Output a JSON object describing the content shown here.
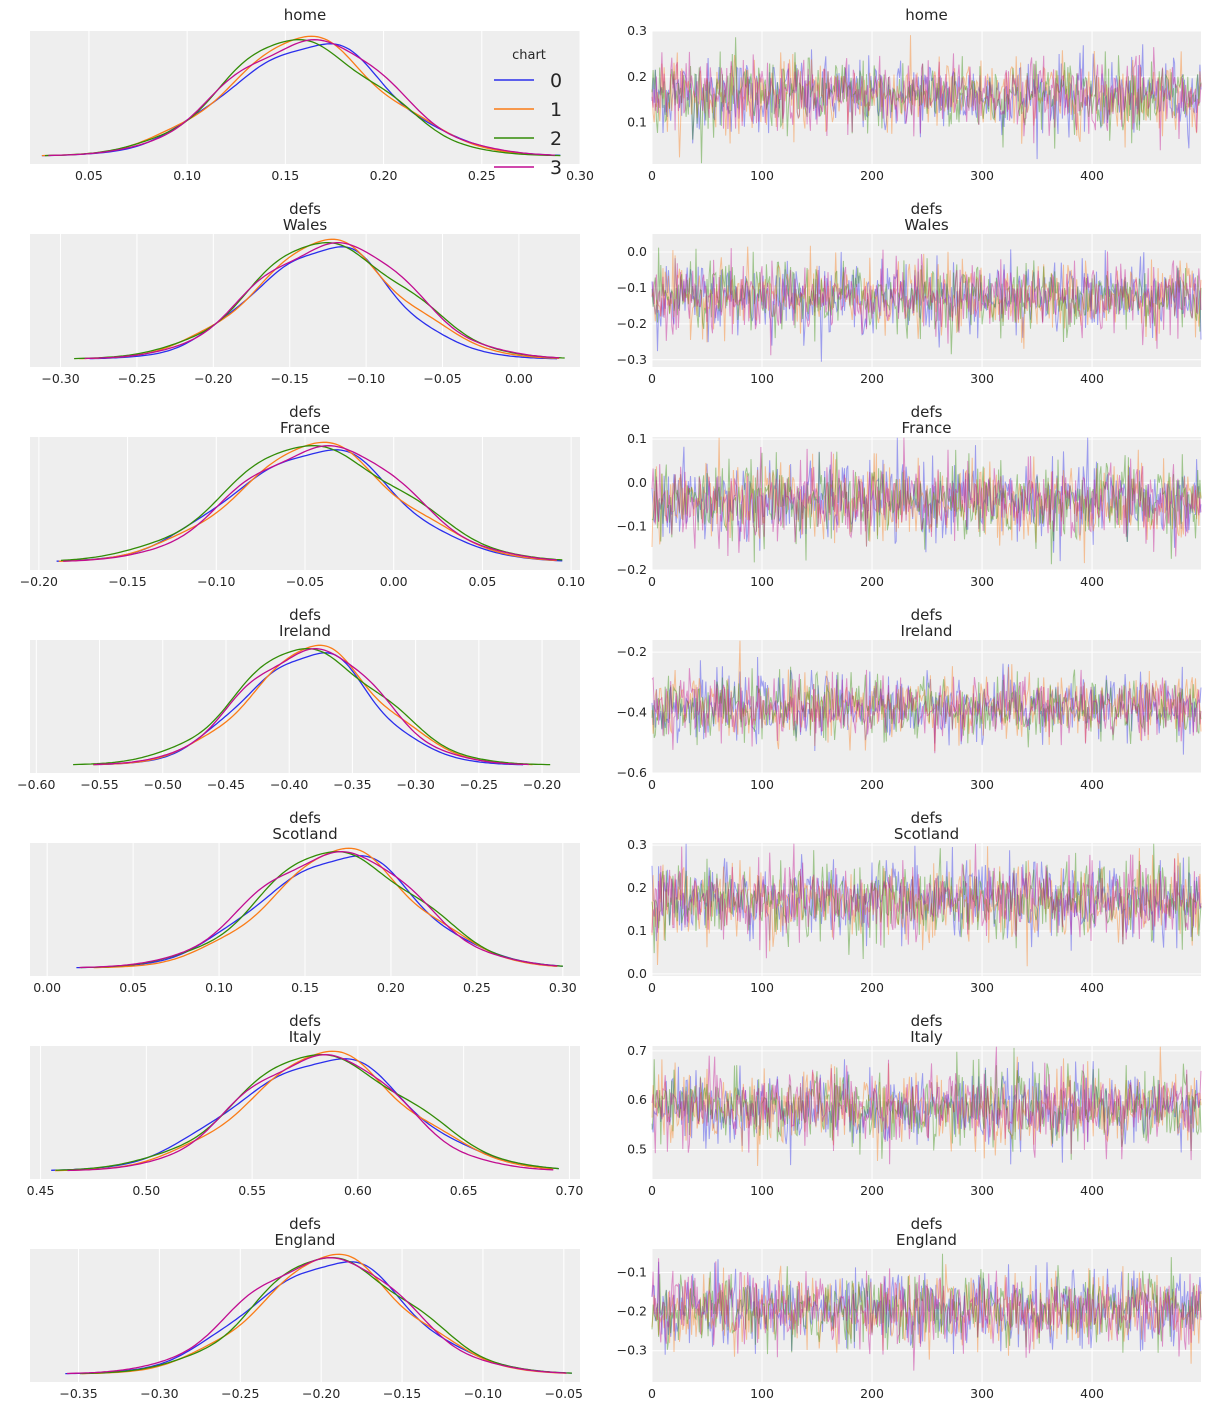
{
  "colors": {
    "chain0": "#2a2eec",
    "chain1": "#fa7c17",
    "chain2": "#328c06",
    "chain3": "#c10c90"
  },
  "legend": {
    "title": "chart",
    "entries": [
      "0",
      "1",
      "2",
      "3"
    ]
  },
  "chart_data": [
    {
      "type": "line",
      "kind": "kde",
      "title": "home",
      "subtitle": "",
      "xlim": [
        0.02,
        0.3
      ],
      "xticks": [
        "0.05",
        "0.10",
        "0.15",
        "0.20",
        "0.25",
        "0.30"
      ],
      "xtickvals": [
        0.05,
        0.1,
        0.15,
        0.2,
        0.25,
        0.3
      ],
      "grid": true,
      "legend": "top-right",
      "chains": [
        {
          "name": "0",
          "mu": 0.162,
          "sd": 0.04
        },
        {
          "name": "1",
          "mu": 0.16,
          "sd": 0.04
        },
        {
          "name": "2",
          "mu": 0.158,
          "sd": 0.039
        },
        {
          "name": "3",
          "mu": 0.162,
          "sd": 0.04
        }
      ],
      "range": [
        0.025,
        0.29
      ]
    },
    {
      "type": "line",
      "kind": "trace",
      "title": "home",
      "subtitle": "",
      "xlim": [
        0,
        499
      ],
      "xticks": [
        "0",
        "100",
        "200",
        "300",
        "400"
      ],
      "xtickvals": [
        0,
        100,
        200,
        300,
        400
      ],
      "ylim": [
        0.01,
        0.3
      ],
      "yticks": [
        "0.1",
        "0.2",
        "0.3"
      ],
      "ytickvals": [
        0.1,
        0.2,
        0.3
      ],
      "mean": 0.16,
      "sd": 0.04,
      "draws": 500
    },
    {
      "type": "line",
      "kind": "kde",
      "title": "defs",
      "subtitle": "Wales",
      "xlim": [
        -0.32,
        0.04
      ],
      "xticks": [
        "−0.30",
        "−0.25",
        "−0.20",
        "−0.15",
        "−0.10",
        "−0.05",
        "0.00"
      ],
      "xtickvals": [
        -0.3,
        -0.25,
        -0.2,
        -0.15,
        -0.1,
        -0.05,
        0.0
      ],
      "grid": true,
      "chains": [
        {
          "name": "0",
          "mu": -0.128,
          "sd": 0.045
        },
        {
          "name": "1",
          "mu": -0.126,
          "sd": 0.048
        },
        {
          "name": "2",
          "mu": -0.124,
          "sd": 0.05
        },
        {
          "name": "3",
          "mu": -0.122,
          "sd": 0.049
        }
      ],
      "range": [
        -0.305,
        0.03
      ]
    },
    {
      "type": "line",
      "kind": "trace",
      "title": "defs",
      "subtitle": "Wales",
      "xlim": [
        0,
        499
      ],
      "xticks": [
        "0",
        "100",
        "200",
        "300",
        "400"
      ],
      "xtickvals": [
        0,
        100,
        200,
        300,
        400
      ],
      "ylim": [
        -0.32,
        0.05
      ],
      "yticks": [
        "−0.3",
        "−0.2",
        "−0.1",
        "0.0"
      ],
      "ytickvals": [
        -0.3,
        -0.2,
        -0.1,
        0.0
      ],
      "mean": -0.125,
      "sd": 0.048,
      "draws": 500
    },
    {
      "type": "line",
      "kind": "kde",
      "title": "defs",
      "subtitle": "France",
      "xlim": [
        -0.205,
        0.105
      ],
      "xticks": [
        "−0.20",
        "−0.15",
        "−0.10",
        "−0.05",
        "0.00",
        "0.05",
        "0.10"
      ],
      "xtickvals": [
        -0.2,
        -0.15,
        -0.1,
        -0.05,
        0.0,
        0.05,
        0.1
      ],
      "grid": true,
      "chains": [
        {
          "name": "0",
          "mu": -0.045,
          "sd": 0.046
        },
        {
          "name": "1",
          "mu": -0.043,
          "sd": 0.046
        },
        {
          "name": "2",
          "mu": -0.044,
          "sd": 0.049
        },
        {
          "name": "3",
          "mu": -0.04,
          "sd": 0.046
        }
      ],
      "range": [
        -0.19,
        0.095
      ]
    },
    {
      "type": "line",
      "kind": "trace",
      "title": "defs",
      "subtitle": "France",
      "xlim": [
        0,
        499
      ],
      "xticks": [
        "0",
        "100",
        "200",
        "300",
        "400"
      ],
      "xtickvals": [
        0,
        100,
        200,
        300,
        400
      ],
      "ylim": [
        -0.2,
        0.105
      ],
      "yticks": [
        "−0.2",
        "−0.1",
        "0.0",
        "0.1"
      ],
      "ytickvals": [
        -0.2,
        -0.1,
        0.0,
        0.1
      ],
      "mean": -0.043,
      "sd": 0.046,
      "draws": 500
    },
    {
      "type": "line",
      "kind": "kde",
      "title": "defs",
      "subtitle": "Ireland",
      "xlim": [
        -0.605,
        -0.17
      ],
      "xticks": [
        "−0.60",
        "−0.55",
        "−0.50",
        "−0.45",
        "−0.40",
        "−0.35",
        "−0.30",
        "−0.25",
        "−0.20"
      ],
      "xtickvals": [
        -0.6,
        -0.55,
        -0.5,
        -0.45,
        -0.4,
        -0.35,
        -0.3,
        -0.25,
        -0.2
      ],
      "grid": true,
      "chains": [
        {
          "name": "0",
          "mu": -0.385,
          "sd": 0.05
        },
        {
          "name": "1",
          "mu": -0.38,
          "sd": 0.052
        },
        {
          "name": "2",
          "mu": -0.384,
          "sd": 0.056
        },
        {
          "name": "3",
          "mu": -0.383,
          "sd": 0.052
        }
      ],
      "range": [
        -0.58,
        -0.18
      ]
    },
    {
      "type": "line",
      "kind": "trace",
      "title": "defs",
      "subtitle": "Ireland",
      "xlim": [
        0,
        499
      ],
      "xticks": [
        "0",
        "100",
        "200",
        "300",
        "400"
      ],
      "xtickvals": [
        0,
        100,
        200,
        300,
        400
      ],
      "ylim": [
        -0.6,
        -0.16
      ],
      "yticks": [
        "−0.6",
        "−0.4",
        "−0.2"
      ],
      "ytickvals": [
        -0.6,
        -0.4,
        -0.2
      ],
      "mean": -0.382,
      "sd": 0.052,
      "draws": 500
    },
    {
      "type": "line",
      "kind": "kde",
      "title": "defs",
      "subtitle": "Scotland",
      "xlim": [
        -0.01,
        0.31
      ],
      "xticks": [
        "0.00",
        "0.05",
        "0.10",
        "0.15",
        "0.20",
        "0.25",
        "0.30"
      ],
      "xtickvals": [
        0.0,
        0.05,
        0.1,
        0.15,
        0.2,
        0.25,
        0.3
      ],
      "grid": true,
      "chains": [
        {
          "name": "0",
          "mu": 0.17,
          "sd": 0.045
        },
        {
          "name": "1",
          "mu": 0.172,
          "sd": 0.043
        },
        {
          "name": "2",
          "mu": 0.17,
          "sd": 0.045
        },
        {
          "name": "3",
          "mu": 0.168,
          "sd": 0.045
        }
      ],
      "range": [
        0.005,
        0.3
      ]
    },
    {
      "type": "line",
      "kind": "trace",
      "title": "defs",
      "subtitle": "Scotland",
      "xlim": [
        0,
        499
      ],
      "xticks": [
        "0",
        "100",
        "200",
        "300",
        "400"
      ],
      "xtickvals": [
        0,
        100,
        200,
        300,
        400
      ],
      "ylim": [
        -0.005,
        0.305
      ],
      "yticks": [
        "0.0",
        "0.1",
        "0.2",
        "0.3"
      ],
      "ytickvals": [
        0.0,
        0.1,
        0.2,
        0.3
      ],
      "mean": 0.17,
      "sd": 0.045,
      "draws": 500
    },
    {
      "type": "line",
      "kind": "kde",
      "title": "defs",
      "subtitle": "Italy",
      "xlim": [
        0.445,
        0.705
      ],
      "xticks": [
        "0.45",
        "0.50",
        "0.55",
        "0.60",
        "0.65",
        "0.70"
      ],
      "xtickvals": [
        0.45,
        0.5,
        0.55,
        0.6,
        0.65,
        0.7
      ],
      "grid": true,
      "chains": [
        {
          "name": "0",
          "mu": 0.583,
          "sd": 0.04
        },
        {
          "name": "1",
          "mu": 0.585,
          "sd": 0.038
        },
        {
          "name": "2",
          "mu": 0.584,
          "sd": 0.04
        },
        {
          "name": "3",
          "mu": 0.582,
          "sd": 0.036
        }
      ],
      "range": [
        0.455,
        0.695
      ]
    },
    {
      "type": "line",
      "kind": "trace",
      "title": "defs",
      "subtitle": "Italy",
      "xlim": [
        0,
        499
      ],
      "xticks": [
        "0",
        "100",
        "200",
        "300",
        "400"
      ],
      "xtickvals": [
        0,
        100,
        200,
        300,
        400
      ],
      "ylim": [
        0.44,
        0.71
      ],
      "yticks": [
        "0.5",
        "0.6",
        "0.7"
      ],
      "ytickvals": [
        0.5,
        0.6,
        0.7
      ],
      "mean": 0.585,
      "sd": 0.038,
      "draws": 500
    },
    {
      "type": "line",
      "kind": "kde",
      "title": "defs",
      "subtitle": "England",
      "xlim": [
        -0.38,
        -0.04
      ],
      "xticks": [
        "−0.35",
        "−0.30",
        "−0.25",
        "−0.20",
        "−0.15",
        "−0.10",
        "−0.05"
      ],
      "xtickvals": [
        -0.35,
        -0.3,
        -0.25,
        -0.2,
        -0.15,
        -0.1,
        -0.05
      ],
      "grid": true,
      "chains": [
        {
          "name": "0",
          "mu": -0.195,
          "sd": 0.048
        },
        {
          "name": "1",
          "mu": -0.193,
          "sd": 0.046
        },
        {
          "name": "2",
          "mu": -0.192,
          "sd": 0.047
        },
        {
          "name": "3",
          "mu": -0.198,
          "sd": 0.048
        }
      ],
      "range": [
        -0.37,
        -0.045
      ]
    },
    {
      "type": "line",
      "kind": "trace",
      "title": "defs",
      "subtitle": "England",
      "xlim": [
        0,
        499
      ],
      "xticks": [
        "0",
        "100",
        "200",
        "300",
        "400"
      ],
      "xtickvals": [
        0,
        100,
        200,
        300,
        400
      ],
      "ylim": [
        -0.38,
        -0.04
      ],
      "yticks": [
        "−0.3",
        "−0.2",
        "−0.1"
      ],
      "ytickvals": [
        -0.3,
        -0.2,
        -0.1
      ],
      "mean": -0.195,
      "sd": 0.047,
      "draws": 500
    }
  ]
}
